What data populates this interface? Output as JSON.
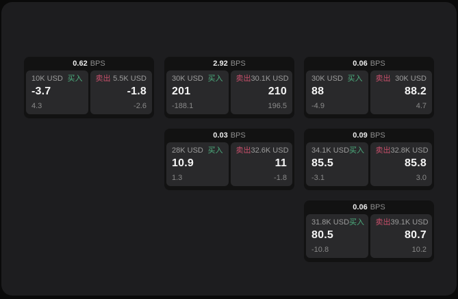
{
  "labels": {
    "bps_unit": "BPS",
    "buy": "买入",
    "sell": "卖出"
  },
  "colors": {
    "outer_bg": "#0a0a0a",
    "window_bg": "#1d1d1f",
    "card_bg": "#121212",
    "panel_bg": "#29292b",
    "buy_green": "#4daf7f",
    "sell_red": "#c9506b"
  },
  "cards": [
    {
      "bps": "0.62",
      "buy": {
        "size": "10K USD",
        "price": "-3.7",
        "secondary": "4.3"
      },
      "sell": {
        "size": "5.5K USD",
        "price": "-1.8",
        "secondary": "-2.6"
      }
    },
    {
      "bps": "2.92",
      "buy": {
        "size": "30K USD",
        "price": "201",
        "secondary": "-188.1"
      },
      "sell": {
        "size": "30.1K USD",
        "price": "210",
        "secondary": "196.5"
      }
    },
    {
      "bps": "0.06",
      "buy": {
        "size": "30K USD",
        "price": "88",
        "secondary": "-4.9"
      },
      "sell": {
        "size": "30K USD",
        "price": "88.2",
        "secondary": "4.7"
      }
    },
    {
      "bps": "0.03",
      "buy": {
        "size": "28K USD",
        "price": "10.9",
        "secondary": "1.3"
      },
      "sell": {
        "size": "32.6K USD",
        "price": "11",
        "secondary": "-1.8"
      }
    },
    {
      "bps": "0.09",
      "buy": {
        "size": "34.1K USD",
        "price": "85.5",
        "secondary": "-3.1"
      },
      "sell": {
        "size": "32.8K USD",
        "price": "85.8",
        "secondary": "3.0"
      }
    },
    {
      "bps": "0.06",
      "buy": {
        "size": "31.8K USD",
        "price": "80.5",
        "secondary": "-10.8"
      },
      "sell": {
        "size": "39.1K USD",
        "price": "80.7",
        "secondary": "10.2"
      }
    }
  ]
}
